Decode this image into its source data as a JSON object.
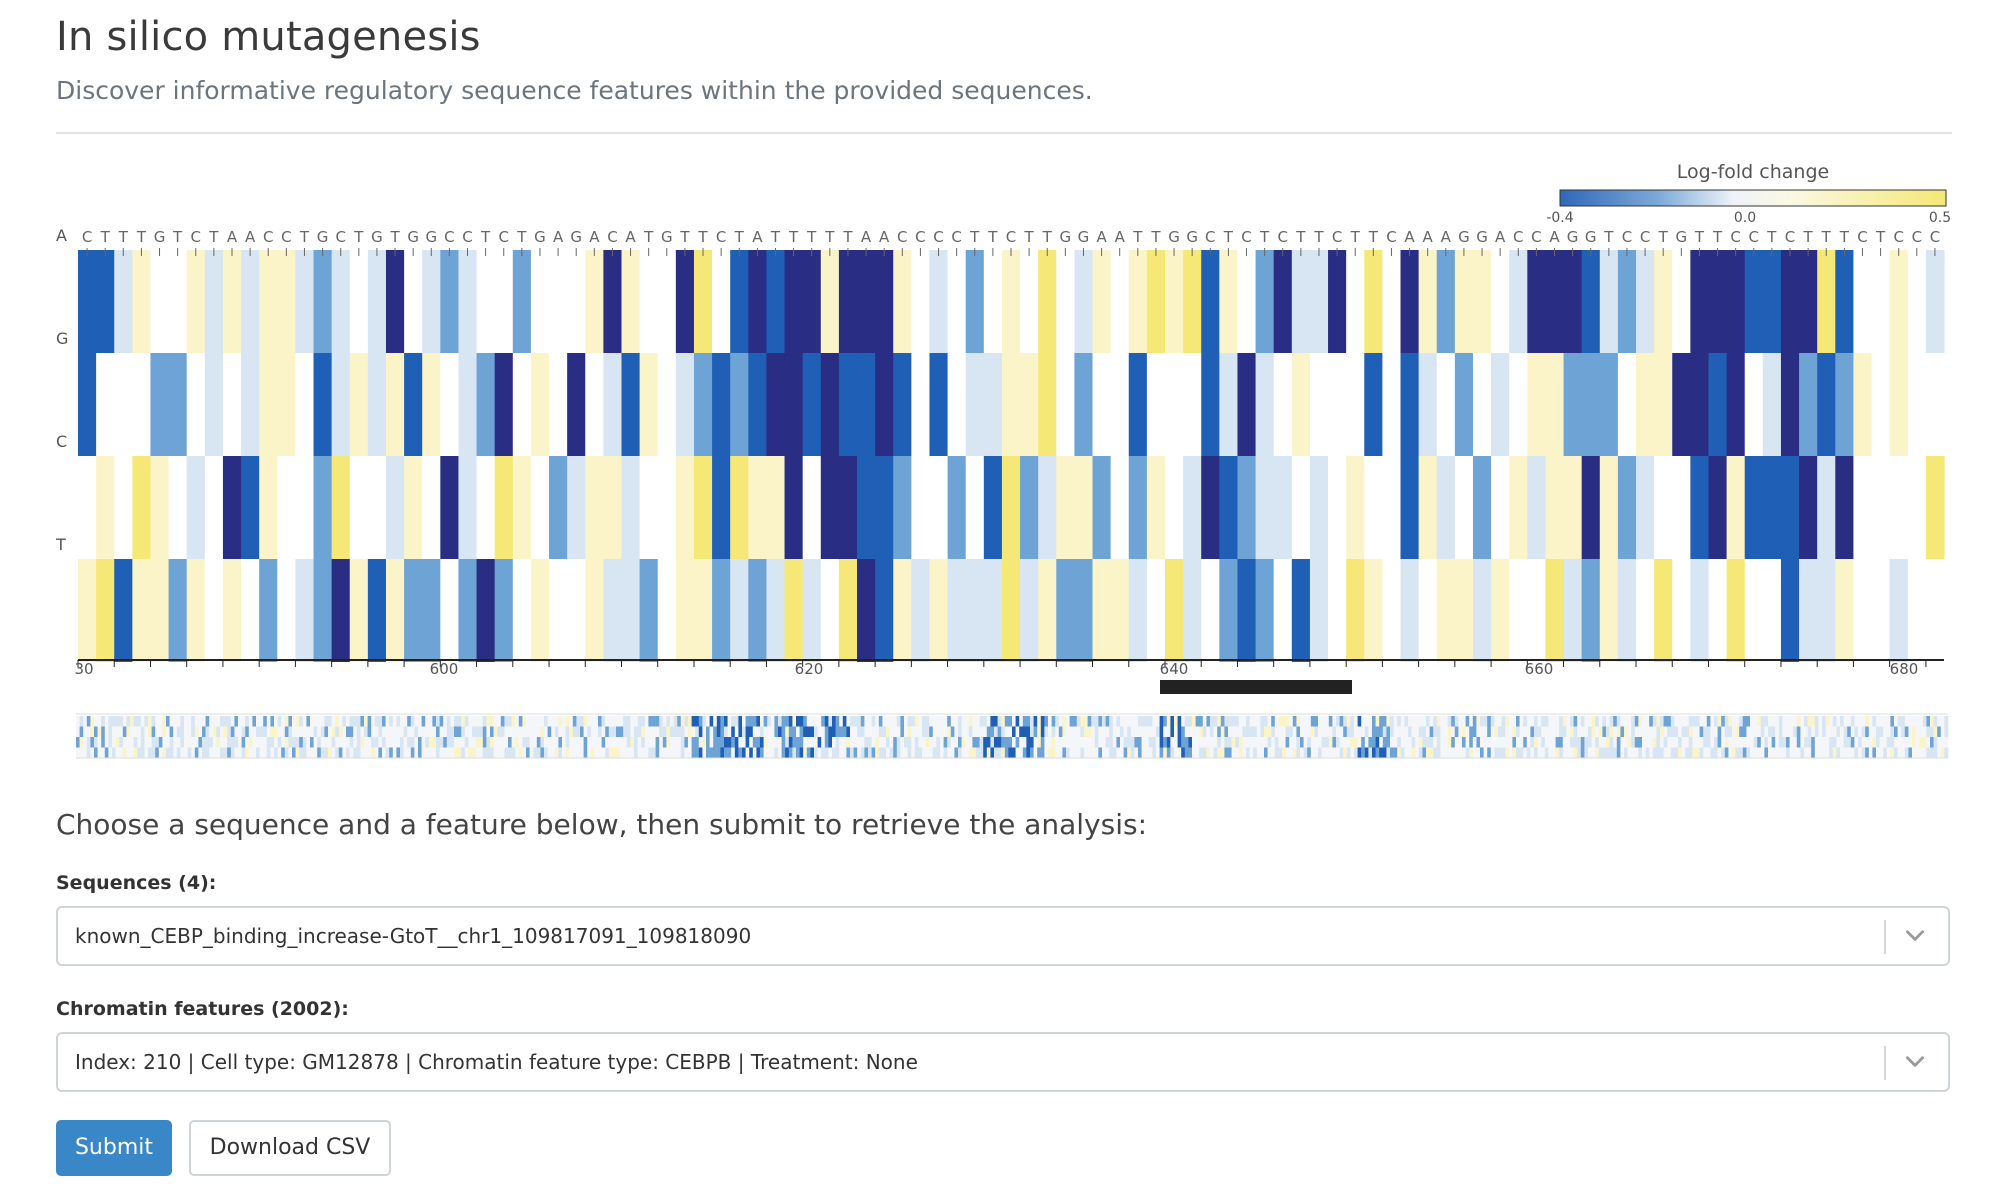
{
  "page": {
    "title": "In silico mutagenesis",
    "subtitle": "Discover informative regulatory sequence features within the provided sequences."
  },
  "legend": {
    "title": "Log-fold change",
    "min_label": "-0.4",
    "mid_label": "0.0",
    "max_label": "0.5",
    "colors": [
      "#2a2d84",
      "#1f5fb5",
      "#6ea3d6",
      "#d8e5f2",
      "#ffffff",
      "#fbf4c8",
      "#f5e876"
    ]
  },
  "row_labels": [
    "A",
    "G",
    "C",
    "T"
  ],
  "sequence": "CTTTGTCTAACCTGCTGTGGCCTCTGAGACATGTTCTATTTTTAACCCCTTCTTGGAATTGGCTCTCTTCTTCAAAGGACCAGGTCCTGTTCCTCTTTCTCCC",
  "x_axis": {
    "start": 580,
    "tick_labels": [
      "30",
      "600",
      "620",
      "640",
      "660",
      "680"
    ]
  },
  "form": {
    "prompt": "Choose a sequence and a feature below, then submit to retrieve the analysis:",
    "sequences_label": "Sequences (4):",
    "sequences_value": "known_CEBP_binding_increase-GtoT__chr1_109817091_109818090",
    "features_label": "Chromatin features (2002):",
    "features_value": "Index: 210 | Cell type: GM12878 | Chromatin feature type: CEBPB | Treatment: None",
    "submit_label": "Submit",
    "download_label": "Download CSV"
  },
  "icons": {
    "select_chevron": "chevron-down-icon"
  }
}
